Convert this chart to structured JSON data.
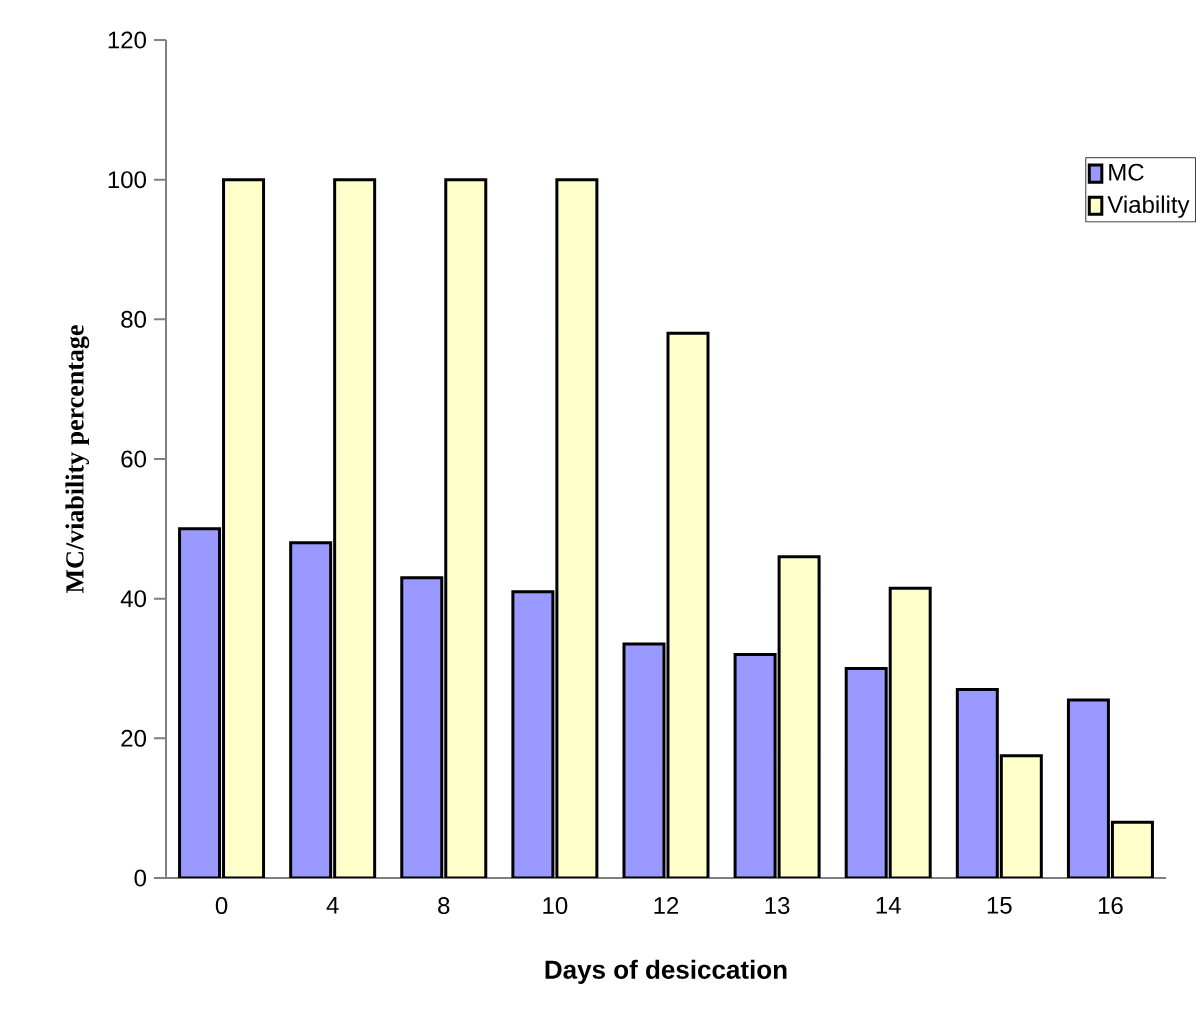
{
  "chart_data": {
    "type": "bar",
    "xlabel": "Days of desiccation",
    "ylabel": "MC/viability percentage",
    "categories": [
      "0",
      "4",
      "8",
      "10",
      "12",
      "13",
      "14",
      "15",
      "16"
    ],
    "series": [
      {
        "name": "MC",
        "color": "#9999ff",
        "values": [
          50,
          48,
          43,
          41,
          33.5,
          32,
          30,
          27,
          25.5
        ]
      },
      {
        "name": "Viability",
        "color": "#ffffcc",
        "values": [
          100,
          100,
          100,
          100,
          78,
          46,
          41.5,
          17.5,
          8
        ]
      }
    ],
    "ylim": [
      0,
      120
    ],
    "yticks": [
      0,
      20,
      40,
      60,
      80,
      100,
      120
    ],
    "grid": false,
    "legend": "top right"
  }
}
